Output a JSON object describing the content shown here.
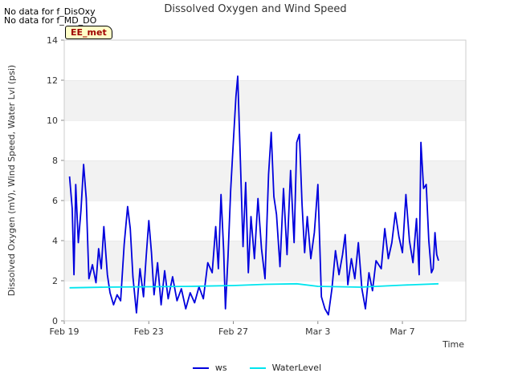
{
  "notes": {
    "line1": "No data for f_DisOxy",
    "line2": "No data for f_MD_DO"
  },
  "badge": "EE_met",
  "chart_data": {
    "type": "line",
    "title": "Dissolved Oxygen and Wind Speed",
    "xlabel": "Time",
    "ylabel": "Dissolved Oxygen (mV), Wind Speed, Water Lvl (psi)",
    "xlim": [
      "2019-02-19",
      "2019-03-10"
    ],
    "ylim": [
      0,
      14
    ],
    "yticks": [
      0,
      2,
      4,
      6,
      8,
      10,
      12,
      14
    ],
    "xticks": [
      {
        "date": "2019-02-19",
        "label": "Feb 19"
      },
      {
        "date": "2019-02-23",
        "label": "Feb 23"
      },
      {
        "date": "2019-02-27",
        "label": "Feb 27"
      },
      {
        "date": "2019-03-03",
        "label": "Mar 3"
      },
      {
        "date": "2019-03-07",
        "label": "Mar 7"
      }
    ],
    "grid": "horizontal bands",
    "legend_position": "bottom-center",
    "series": [
      {
        "name": "ws",
        "color": "#0000dd",
        "points": [
          [
            "2019-02-19T06:00",
            7.2
          ],
          [
            "2019-02-19T09:00",
            5.6
          ],
          [
            "2019-02-19T11:00",
            2.3
          ],
          [
            "2019-02-19T13:00",
            6.8
          ],
          [
            "2019-02-19T16:00",
            3.9
          ],
          [
            "2019-02-19T19:00",
            5.5
          ],
          [
            "2019-02-19T22:00",
            7.8
          ],
          [
            "2019-02-20T01:00",
            6.1
          ],
          [
            "2019-02-20T04:00",
            2.1
          ],
          [
            "2019-02-20T08:00",
            2.8
          ],
          [
            "2019-02-20T12:00",
            1.9
          ],
          [
            "2019-02-20T15:00",
            3.6
          ],
          [
            "2019-02-20T18:00",
            2.6
          ],
          [
            "2019-02-20T21:00",
            4.7
          ],
          [
            "2019-02-21T01:00",
            2.3
          ],
          [
            "2019-02-21T04:00",
            1.4
          ],
          [
            "2019-02-21T08:00",
            0.8
          ],
          [
            "2019-02-21T12:00",
            1.3
          ],
          [
            "2019-02-21T16:00",
            1.0
          ],
          [
            "2019-02-21T20:00",
            3.8
          ],
          [
            "2019-02-22T00:00",
            5.7
          ],
          [
            "2019-02-22T03:00",
            4.6
          ],
          [
            "2019-02-22T06:00",
            2.2
          ],
          [
            "2019-02-22T10:00",
            0.4
          ],
          [
            "2019-02-22T14:00",
            2.6
          ],
          [
            "2019-02-22T18:00",
            1.2
          ],
          [
            "2019-02-22T21:00",
            3.2
          ],
          [
            "2019-02-23T00:00",
            5.0
          ],
          [
            "2019-02-23T03:00",
            3.4
          ],
          [
            "2019-02-23T06:00",
            1.3
          ],
          [
            "2019-02-23T10:00",
            2.9
          ],
          [
            "2019-02-23T14:00",
            0.8
          ],
          [
            "2019-02-23T18:00",
            2.5
          ],
          [
            "2019-02-23T22:00",
            1.1
          ],
          [
            "2019-02-24T03:00",
            2.2
          ],
          [
            "2019-02-24T08:00",
            1.0
          ],
          [
            "2019-02-24T13:00",
            1.6
          ],
          [
            "2019-02-24T18:00",
            0.6
          ],
          [
            "2019-02-24T23:00",
            1.4
          ],
          [
            "2019-02-25T04:00",
            0.9
          ],
          [
            "2019-02-25T09:00",
            1.7
          ],
          [
            "2019-02-25T14:00",
            1.1
          ],
          [
            "2019-02-25T19:00",
            2.9
          ],
          [
            "2019-02-26T00:00",
            2.4
          ],
          [
            "2019-02-26T04:00",
            4.7
          ],
          [
            "2019-02-26T07:00",
            2.6
          ],
          [
            "2019-02-26T10:00",
            6.3
          ],
          [
            "2019-02-26T13:00",
            3.5
          ],
          [
            "2019-02-26T15:00",
            0.6
          ],
          [
            "2019-02-26T18:00",
            3.2
          ],
          [
            "2019-02-26T21:00",
            6.5
          ],
          [
            "2019-02-27T00:00",
            8.9
          ],
          [
            "2019-02-27T03:00",
            11.2
          ],
          [
            "2019-02-27T05:00",
            12.2
          ],
          [
            "2019-02-27T08:00",
            8.0
          ],
          [
            "2019-02-27T11:00",
            3.7
          ],
          [
            "2019-02-27T14:00",
            6.9
          ],
          [
            "2019-02-27T17:00",
            2.4
          ],
          [
            "2019-02-27T20:00",
            5.2
          ],
          [
            "2019-02-28T00:00",
            3.1
          ],
          [
            "2019-02-28T04:00",
            6.1
          ],
          [
            "2019-02-28T08:00",
            3.6
          ],
          [
            "2019-02-28T12:00",
            2.1
          ],
          [
            "2019-02-28T16:00",
            7.3
          ],
          [
            "2019-02-28T19:00",
            9.4
          ],
          [
            "2019-02-28T22:00",
            6.2
          ],
          [
            "2019-03-01T01:00",
            5.3
          ],
          [
            "2019-03-01T05:00",
            2.7
          ],
          [
            "2019-03-01T09:00",
            6.6
          ],
          [
            "2019-03-01T13:00",
            3.3
          ],
          [
            "2019-03-01T17:00",
            7.5
          ],
          [
            "2019-03-01T21:00",
            3.9
          ],
          [
            "2019-03-02T00:00",
            8.9
          ],
          [
            "2019-03-02T03:00",
            9.3
          ],
          [
            "2019-03-02T06:00",
            5.8
          ],
          [
            "2019-03-02T09:00",
            3.4
          ],
          [
            "2019-03-02T12:00",
            5.2
          ],
          [
            "2019-03-02T16:00",
            3.1
          ],
          [
            "2019-03-02T20:00",
            4.4
          ],
          [
            "2019-03-03T00:00",
            6.8
          ],
          [
            "2019-03-03T04:00",
            1.2
          ],
          [
            "2019-03-03T08:00",
            0.6
          ],
          [
            "2019-03-03T12:00",
            0.3
          ],
          [
            "2019-03-03T16:00",
            1.6
          ],
          [
            "2019-03-03T20:00",
            3.5
          ],
          [
            "2019-03-04T00:00",
            2.3
          ],
          [
            "2019-03-04T04:00",
            3.3
          ],
          [
            "2019-03-04T07:00",
            4.3
          ],
          [
            "2019-03-04T10:00",
            1.8
          ],
          [
            "2019-03-04T14:00",
            3.1
          ],
          [
            "2019-03-04T18:00",
            2.1
          ],
          [
            "2019-03-04T22:00",
            3.9
          ],
          [
            "2019-03-05T02:00",
            1.6
          ],
          [
            "2019-03-05T06:00",
            0.6
          ],
          [
            "2019-03-05T10:00",
            2.4
          ],
          [
            "2019-03-05T14:00",
            1.5
          ],
          [
            "2019-03-05T18:00",
            3.0
          ],
          [
            "2019-03-06T00:00",
            2.6
          ],
          [
            "2019-03-06T04:00",
            4.6
          ],
          [
            "2019-03-06T08:00",
            3.1
          ],
          [
            "2019-03-06T12:00",
            3.9
          ],
          [
            "2019-03-06T16:00",
            5.4
          ],
          [
            "2019-03-06T20:00",
            4.2
          ],
          [
            "2019-03-07T00:00",
            3.4
          ],
          [
            "2019-03-07T04:00",
            6.3
          ],
          [
            "2019-03-07T08:00",
            4.0
          ],
          [
            "2019-03-07T12:00",
            2.9
          ],
          [
            "2019-03-07T16:00",
            5.1
          ],
          [
            "2019-03-07T19:00",
            2.3
          ],
          [
            "2019-03-07T21:00",
            8.9
          ],
          [
            "2019-03-08T00:00",
            6.6
          ],
          [
            "2019-03-08T03:00",
            6.8
          ],
          [
            "2019-03-08T06:00",
            4.0
          ],
          [
            "2019-03-08T09:00",
            2.4
          ],
          [
            "2019-03-08T11:00",
            2.6
          ],
          [
            "2019-03-08T13:00",
            4.4
          ],
          [
            "2019-03-08T15:00",
            3.3
          ],
          [
            "2019-03-08T17:00",
            3.0
          ]
        ]
      },
      {
        "name": "WaterLevel",
        "color": "#00e5ee",
        "points": [
          [
            "2019-02-19T06:00",
            1.65
          ],
          [
            "2019-02-21T00:00",
            1.68
          ],
          [
            "2019-02-23T00:00",
            1.7
          ],
          [
            "2019-02-25T00:00",
            1.72
          ],
          [
            "2019-02-27T00:00",
            1.76
          ],
          [
            "2019-02-28T12:00",
            1.82
          ],
          [
            "2019-03-02T00:00",
            1.85
          ],
          [
            "2019-03-03T00:00",
            1.72
          ],
          [
            "2019-03-05T00:00",
            1.68
          ],
          [
            "2019-03-07T00:00",
            1.78
          ],
          [
            "2019-03-08T17:00",
            1.85
          ]
        ]
      }
    ]
  }
}
